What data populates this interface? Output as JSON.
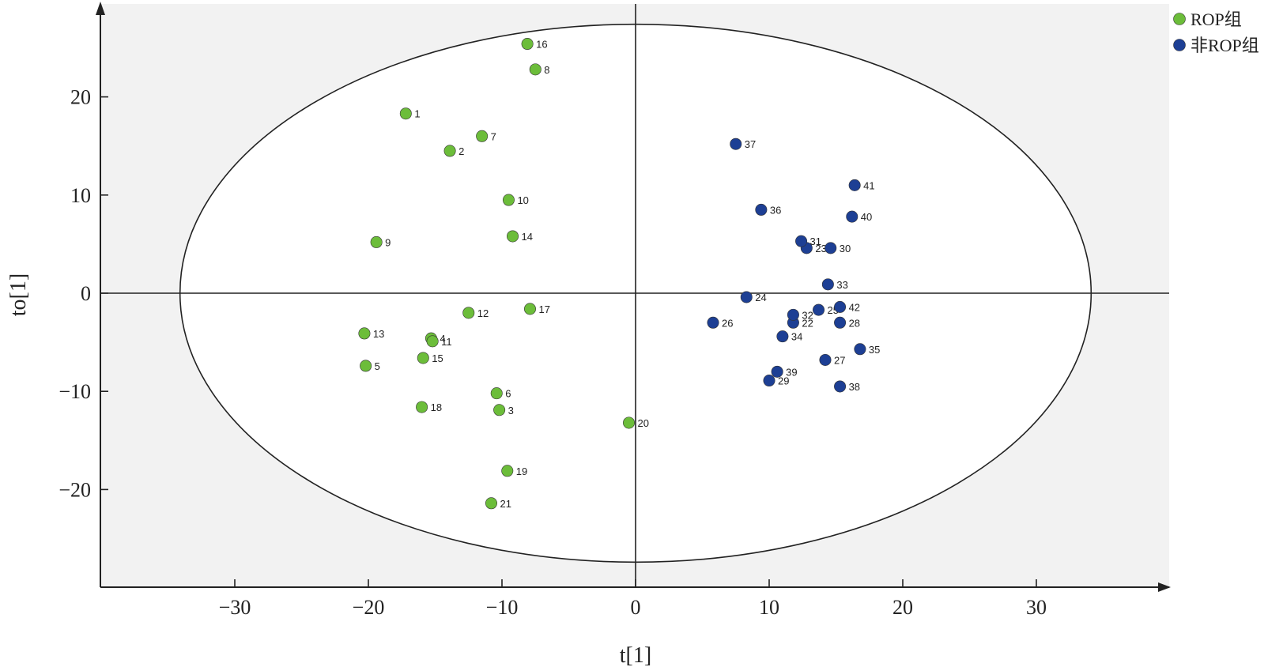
{
  "chart_data": {
    "type": "scatter",
    "title": "",
    "xlabel": "t[1]",
    "ylabel": "to[1]",
    "xlim": [
      -40,
      40
    ],
    "ylim": [
      -30,
      30
    ],
    "xticks": [
      {
        "value": -30,
        "label": "−30"
      },
      {
        "value": -20,
        "label": "−20"
      },
      {
        "value": -10,
        "label": "−10"
      },
      {
        "value": 0,
        "label": "0"
      },
      {
        "value": 10,
        "label": "10"
      },
      {
        "value": 20,
        "label": "20"
      },
      {
        "value": 30,
        "label": "30"
      }
    ],
    "yticks": [
      {
        "value": 20,
        "label": "20"
      },
      {
        "value": 10,
        "label": "10"
      },
      {
        "value": 0,
        "label": "0"
      },
      {
        "value": -10,
        "label": "−10"
      },
      {
        "value": -20,
        "label": "−20"
      }
    ],
    "ellipse": {
      "rx": 34.1,
      "ry": 27.4
    },
    "legend_position": "top-right",
    "series": [
      {
        "name": "ROP组",
        "color": "#6cbd3a",
        "points": [
          {
            "id": "1",
            "x": -17.2,
            "y": 18.3
          },
          {
            "id": "2",
            "x": -13.9,
            "y": 14.5
          },
          {
            "id": "3",
            "x": -10.2,
            "y": -11.9
          },
          {
            "id": "4",
            "x": -15.3,
            "y": -4.6
          },
          {
            "id": "5",
            "x": -20.2,
            "y": -7.4
          },
          {
            "id": "6",
            "x": -10.4,
            "y": -10.2
          },
          {
            "id": "7",
            "x": -11.5,
            "y": 16.0
          },
          {
            "id": "8",
            "x": -7.5,
            "y": 22.8
          },
          {
            "id": "9",
            "x": -19.4,
            "y": 5.2
          },
          {
            "id": "10",
            "x": -9.5,
            "y": 9.5
          },
          {
            "id": "11",
            "x": -15.2,
            "y": -4.9
          },
          {
            "id": "12",
            "x": -12.5,
            "y": -2.0
          },
          {
            "id": "13",
            "x": -20.3,
            "y": -4.1
          },
          {
            "id": "14",
            "x": -9.2,
            "y": 5.8
          },
          {
            "id": "15",
            "x": -15.9,
            "y": -6.6
          },
          {
            "id": "16",
            "x": -8.1,
            "y": 25.4
          },
          {
            "id": "17",
            "x": -7.9,
            "y": -1.6
          },
          {
            "id": "18",
            "x": -16.0,
            "y": -11.6
          },
          {
            "id": "19",
            "x": -9.6,
            "y": -18.1
          },
          {
            "id": "20",
            "x": -0.5,
            "y": -13.2
          },
          {
            "id": "21",
            "x": -10.8,
            "y": -21.4
          }
        ]
      },
      {
        "name": "非ROP组",
        "color": "#1d3f94",
        "points": [
          {
            "id": "22",
            "x": 11.8,
            "y": -3.0
          },
          {
            "id": "23",
            "x": 12.8,
            "y": 4.6
          },
          {
            "id": "24",
            "x": 8.3,
            "y": -0.4
          },
          {
            "id": "25",
            "x": 13.7,
            "y": -1.7
          },
          {
            "id": "26",
            "x": 5.8,
            "y": -3.0
          },
          {
            "id": "27",
            "x": 14.2,
            "y": -6.8
          },
          {
            "id": "28",
            "x": 15.3,
            "y": -3.0
          },
          {
            "id": "29",
            "x": 10.0,
            "y": -8.9
          },
          {
            "id": "30",
            "x": 14.6,
            "y": 4.6
          },
          {
            "id": "31",
            "x": 12.4,
            "y": 5.3
          },
          {
            "id": "32",
            "x": 11.8,
            "y": -2.2
          },
          {
            "id": "33",
            "x": 14.4,
            "y": 0.9
          },
          {
            "id": "34",
            "x": 11.0,
            "y": -4.4
          },
          {
            "id": "35",
            "x": 16.8,
            "y": -5.7
          },
          {
            "id": "36",
            "x": 9.4,
            "y": 8.5
          },
          {
            "id": "37",
            "x": 7.5,
            "y": 15.2
          },
          {
            "id": "38",
            "x": 15.3,
            "y": -9.5
          },
          {
            "id": "39",
            "x": 10.6,
            "y": -8.0
          },
          {
            "id": "40",
            "x": 16.2,
            "y": 7.8
          },
          {
            "id": "41",
            "x": 16.4,
            "y": 11.0
          },
          {
            "id": "42",
            "x": 15.3,
            "y": -1.4
          }
        ]
      }
    ]
  }
}
